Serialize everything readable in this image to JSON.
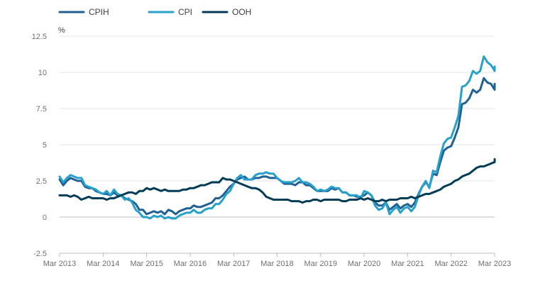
{
  "chart_data": {
    "type": "line",
    "title": "",
    "xlabel": "",
    "ylabel": "%",
    "ylim": [
      -2.5,
      12.5
    ],
    "y_ticks": [
      "-2.5",
      "0",
      "2.5",
      "5",
      "7.5",
      "10",
      "12.5"
    ],
    "x_tick_labels": [
      "Mar 2013",
      "Mar 2014",
      "Mar 2015",
      "Mar 2016",
      "Mar 2017",
      "Mar 2018",
      "Mar 2019",
      "Mar 2020",
      "Mar 2021",
      "Mar 2022",
      "Mar 2023"
    ],
    "x_start": "Mar 2013",
    "x_end": "Mar 2023",
    "grid": "horizontal",
    "legend_position": "top-left",
    "series": [
      {
        "name": "CPIH",
        "color": "#206095",
        "values": [
          2.6,
          2.2,
          2.5,
          2.7,
          2.6,
          2.5,
          2.5,
          2.1,
          2.0,
          2.0,
          1.8,
          1.7,
          1.6,
          1.6,
          1.5,
          1.7,
          1.5,
          1.5,
          1.3,
          1.2,
          1.1,
          0.9,
          0.5,
          0.5,
          0.2,
          0.3,
          0.4,
          0.3,
          0.4,
          0.2,
          0.5,
          0.4,
          0.2,
          0.4,
          0.5,
          0.6,
          0.6,
          0.8,
          0.7,
          0.7,
          0.8,
          0.9,
          1.0,
          1.3,
          1.3,
          1.5,
          1.8,
          2.1,
          2.3,
          2.6,
          2.7,
          2.8,
          2.6,
          2.6,
          2.7,
          2.7,
          2.8,
          2.8,
          2.7,
          2.7,
          2.7,
          2.5,
          2.3,
          2.3,
          2.3,
          2.2,
          2.4,
          2.4,
          2.2,
          2.2,
          2.0,
          1.8,
          1.8,
          1.8,
          1.8,
          2.0,
          1.9,
          2.0,
          1.7,
          1.7,
          1.5,
          1.5,
          1.4,
          1.4,
          1.5,
          1.7,
          1.5,
          1.0,
          0.8,
          0.8,
          1.0,
          0.5,
          0.7,
          0.9,
          0.6,
          0.8,
          0.9,
          0.7,
          1.0,
          1.6,
          2.1,
          2.4,
          2.1,
          3.0,
          2.9,
          3.8,
          4.6,
          4.8,
          4.9,
          5.5,
          6.2,
          7.8,
          7.9,
          8.2,
          8.8,
          8.6,
          8.8,
          9.6,
          9.3,
          9.2,
          8.8,
          9.2,
          8.9
        ]
      },
      {
        "name": "CPI",
        "color": "#27a0cc",
        "values": [
          2.8,
          2.4,
          2.7,
          2.9,
          2.8,
          2.7,
          2.7,
          2.2,
          2.1,
          2.0,
          1.9,
          1.7,
          1.6,
          1.8,
          1.5,
          1.9,
          1.6,
          1.5,
          1.2,
          1.3,
          1.0,
          0.5,
          0.3,
          0.0,
          0.0,
          -0.1,
          0.1,
          0.0,
          0.1,
          -0.1,
          0.0,
          -0.1,
          -0.1,
          0.1,
          0.2,
          0.3,
          0.3,
          0.5,
          0.3,
          0.3,
          0.5,
          0.6,
          0.6,
          0.9,
          0.9,
          1.2,
          1.6,
          1.8,
          2.3,
          2.7,
          2.9,
          2.6,
          2.6,
          2.6,
          2.9,
          3.0,
          3.0,
          3.1,
          3.0,
          3.0,
          2.7,
          2.5,
          2.4,
          2.4,
          2.4,
          2.5,
          2.7,
          2.4,
          2.4,
          2.3,
          2.1,
          1.8,
          1.9,
          1.8,
          1.9,
          2.1,
          2.0,
          2.0,
          1.7,
          1.7,
          1.5,
          1.5,
          1.5,
          1.3,
          1.8,
          1.7,
          1.5,
          0.8,
          0.5,
          0.6,
          1.0,
          0.2,
          0.5,
          0.7,
          0.3,
          0.6,
          0.7,
          0.4,
          0.7,
          1.5,
          2.1,
          2.5,
          2.0,
          3.2,
          3.1,
          4.2,
          5.1,
          5.4,
          5.5,
          6.2,
          7.0,
          9.0,
          9.1,
          9.4,
          10.1,
          9.9,
          10.1,
          11.1,
          10.7,
          10.5,
          10.1,
          10.4,
          10.1
        ]
      },
      {
        "name": "OOH",
        "color": "#003c57",
        "values": [
          1.5,
          1.5,
          1.5,
          1.4,
          1.5,
          1.4,
          1.2,
          1.3,
          1.4,
          1.3,
          1.3,
          1.3,
          1.3,
          1.2,
          1.3,
          1.3,
          1.4,
          1.5,
          1.6,
          1.7,
          1.7,
          1.6,
          1.8,
          1.8,
          2.0,
          1.9,
          2.0,
          1.9,
          1.8,
          1.9,
          1.8,
          1.8,
          1.8,
          1.8,
          1.9,
          1.9,
          2.0,
          2.0,
          2.1,
          2.2,
          2.2,
          2.3,
          2.4,
          2.4,
          2.4,
          2.7,
          2.6,
          2.6,
          2.5,
          2.4,
          2.3,
          2.2,
          2.1,
          2.0,
          2.0,
          1.9,
          1.7,
          1.4,
          1.3,
          1.2,
          1.2,
          1.2,
          1.2,
          1.2,
          1.1,
          1.1,
          1.1,
          1.0,
          1.1,
          1.1,
          1.2,
          1.2,
          1.1,
          1.2,
          1.2,
          1.2,
          1.2,
          1.2,
          1.1,
          1.1,
          1.2,
          1.2,
          1.2,
          1.3,
          1.2,
          1.3,
          1.2,
          1.1,
          1.1,
          1.2,
          1.1,
          1.2,
          1.2,
          1.2,
          1.3,
          1.3,
          1.3,
          1.4,
          1.3,
          1.4,
          1.5,
          1.6,
          1.6,
          1.7,
          1.8,
          1.9,
          2.1,
          2.2,
          2.3,
          2.5,
          2.6,
          2.8,
          2.9,
          3.0,
          3.2,
          3.4,
          3.5,
          3.5,
          3.6,
          3.7,
          3.8,
          3.8,
          3.9,
          4.0
        ]
      }
    ]
  }
}
